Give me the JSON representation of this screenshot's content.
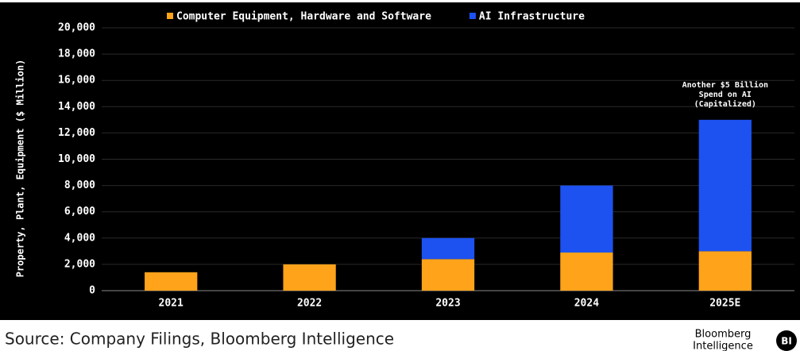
{
  "chart_data": {
    "type": "stacked_bar",
    "y_label": "Property, Plant, Equipment ($ Million)",
    "categories": [
      "2021",
      "2022",
      "2023",
      "2024",
      "2025E"
    ],
    "series": [
      {
        "name": "Computer Equipment, Hardware and Software",
        "color": "#ffa31a",
        "values": [
          1400,
          2000,
          2400,
          2900,
          3000
        ]
      },
      {
        "name": "AI Infrastructure",
        "color": "#1d52f0",
        "values": [
          0,
          0,
          1600,
          5100,
          10000
        ]
      }
    ],
    "ylim": [
      0,
      20000
    ],
    "yticks": [
      0,
      {
        "value": 2000,
        "label": "2,000"
      },
      {
        "value": 4000,
        "label": "4,000"
      },
      {
        "value": 6000,
        "label": "6,000"
      },
      {
        "value": 8000,
        "label": "8,000"
      },
      {
        "value": 10000,
        "label": "10,000"
      },
      {
        "value": 12000,
        "label": "12,000"
      },
      {
        "value": 14000,
        "label": "14,000"
      },
      {
        "value": 16000,
        "label": "16,000"
      },
      {
        "value": 18000,
        "label": "18,000"
      },
      {
        "value": 20000,
        "label": "20,000"
      }
    ],
    "grid": true,
    "annotation": [
      "Another $5 Billion",
      "Spend on AI",
      "(Capitalized)"
    ]
  },
  "footer": {
    "source": "Source: Company Filings, Bloomberg Intelligence",
    "logo": [
      "Bloomberg",
      "Intelligence"
    ],
    "badge": "BI"
  }
}
